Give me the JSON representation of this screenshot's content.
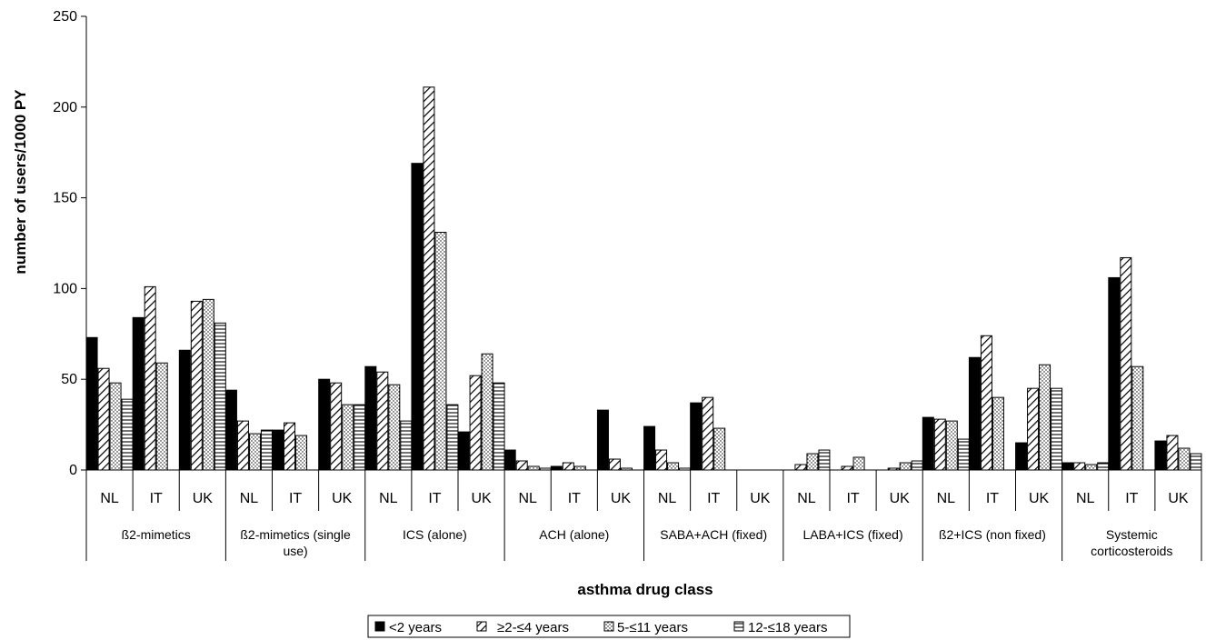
{
  "chart_data": {
    "type": "bar",
    "title": "",
    "xlabel": "asthma drug class",
    "ylabel": "number of users/1000 PY",
    "ylim": [
      0,
      250
    ],
    "yticks": [
      0,
      50,
      100,
      150,
      200,
      250
    ],
    "groups": [
      {
        "label": "ß2-mimetics",
        "countries": [
          "NL",
          "IT",
          "UK"
        ]
      },
      {
        "label": "ß2-mimetics (single use)",
        "countries": [
          "NL",
          "IT",
          "UK"
        ]
      },
      {
        "label": "ICS (alone)",
        "countries": [
          "NL",
          "IT",
          "UK"
        ]
      },
      {
        "label": "ACH (alone)",
        "countries": [
          "NL",
          "IT",
          "UK"
        ]
      },
      {
        "label": "SABA+ACH (fixed)",
        "countries": [
          "NL",
          "IT",
          "UK"
        ]
      },
      {
        "label": "LABA+ICS (fixed)",
        "countries": [
          "NL",
          "IT",
          "UK"
        ]
      },
      {
        "label": "ß2+ICS (non fixed)",
        "countries": [
          "NL",
          "IT",
          "UK"
        ]
      },
      {
        "label": "Systemic corticosteroids",
        "countries": [
          "NL",
          "IT",
          "UK"
        ]
      }
    ],
    "series": [
      {
        "name": "<2 years",
        "pattern": "solid",
        "values": [
          73,
          84,
          66,
          44,
          22,
          50,
          57,
          169,
          21,
          11,
          2,
          33,
          24,
          37,
          0,
          0,
          0,
          0,
          29,
          62,
          15,
          4,
          106,
          16
        ]
      },
      {
        "name": "≥2-≤4 years",
        "pattern": "diagonal",
        "values": [
          56,
          101,
          93,
          27,
          26,
          48,
          54,
          211,
          52,
          5,
          4,
          6,
          11,
          40,
          0,
          3,
          2,
          1,
          28,
          74,
          45,
          4,
          117,
          19
        ]
      },
      {
        "name": "5-≤11 years",
        "pattern": "dotted",
        "values": [
          48,
          59,
          94,
          20,
          19,
          36,
          47,
          131,
          64,
          2,
          2,
          1,
          4,
          23,
          0,
          9,
          7,
          4,
          27,
          40,
          58,
          3,
          57,
          12
        ]
      },
      {
        "name": "12-≤18 years",
        "pattern": "horizontal",
        "values": [
          39,
          0,
          81,
          22,
          0,
          36,
          27,
          36,
          48,
          1,
          0,
          0,
          1,
          0,
          0,
          11,
          0,
          5,
          17,
          0,
          45,
          4,
          0,
          9
        ]
      }
    ],
    "legend": {
      "position": "bottom"
    }
  }
}
